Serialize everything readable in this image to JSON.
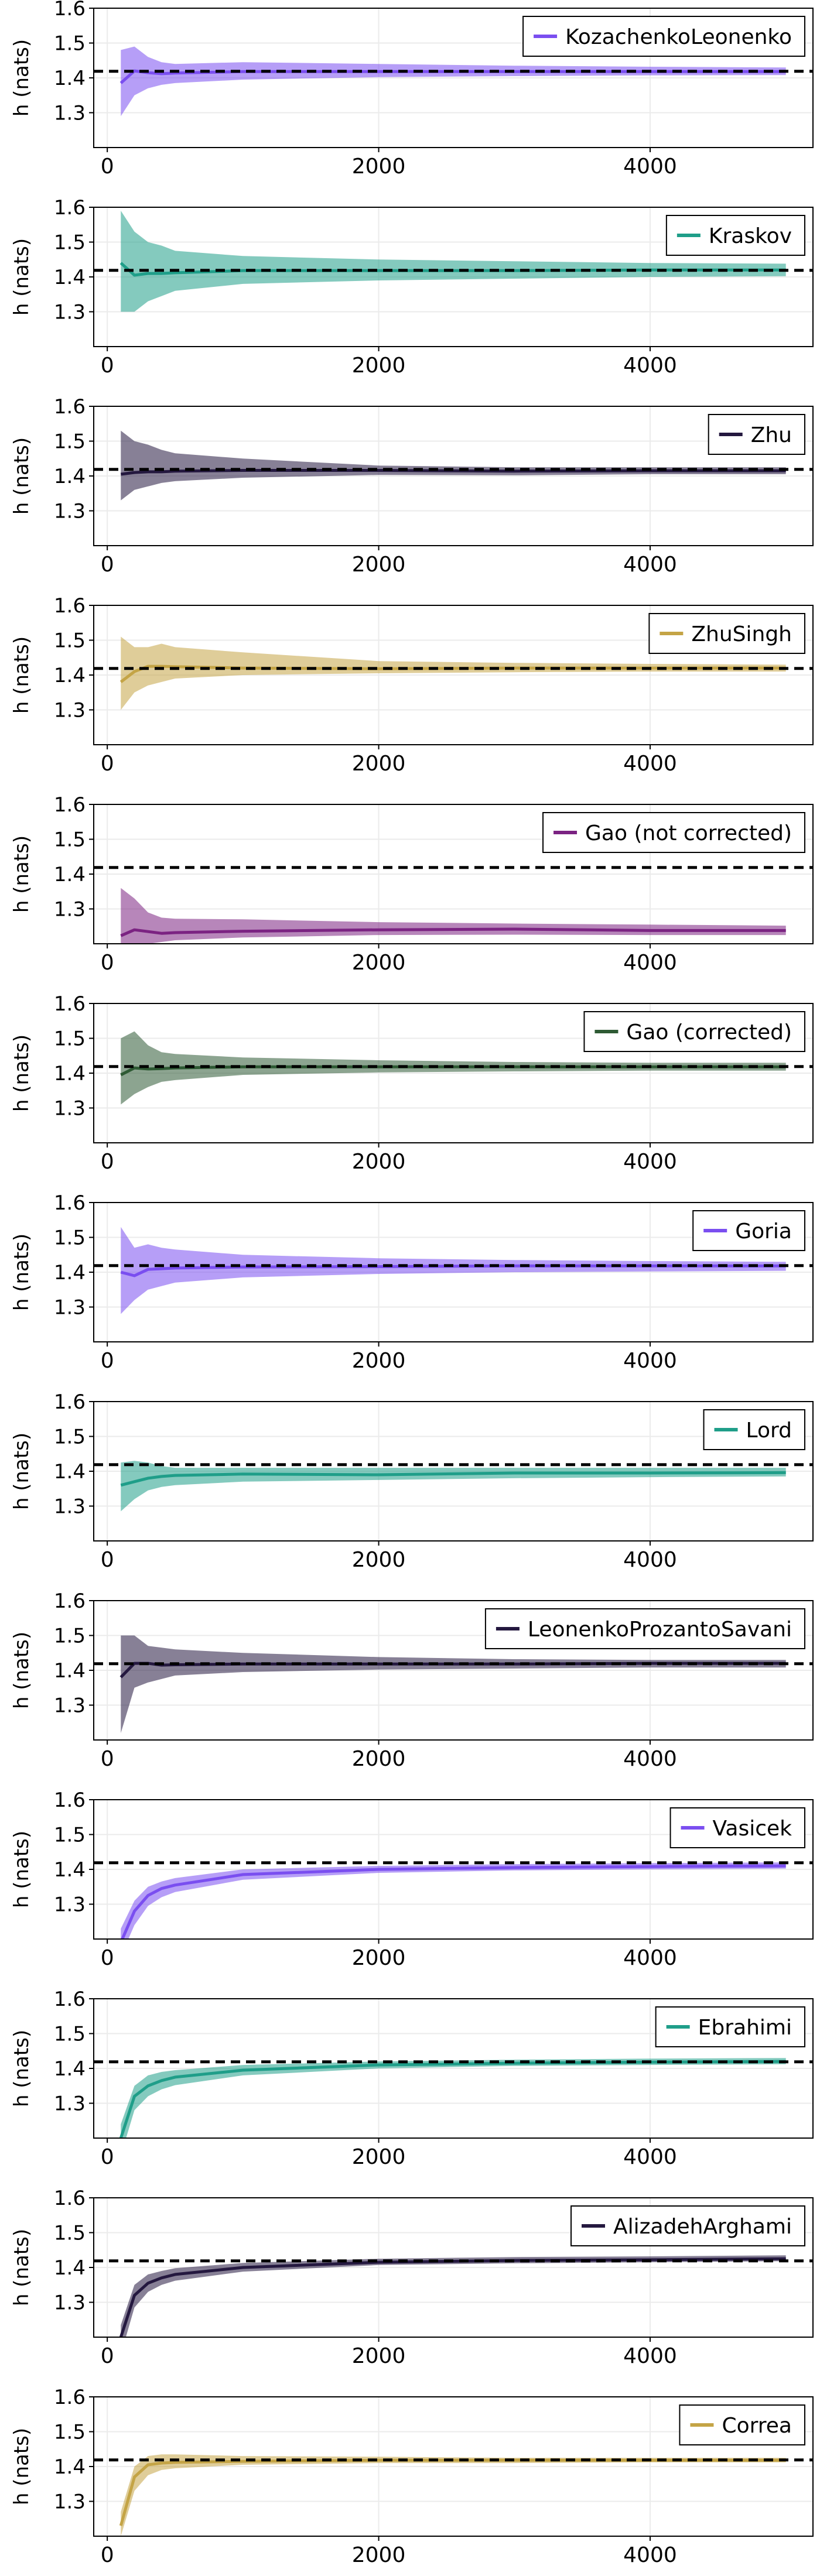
{
  "figure": {
    "ylabel": "h (nats)",
    "reference_value": 1.4189,
    "xlim": [
      -100,
      5200
    ],
    "ylim": [
      1.2,
      1.6
    ],
    "x_ticks": [
      0,
      2000,
      4000
    ],
    "y_ticks": [
      1.3,
      1.4,
      1.5,
      1.6
    ],
    "grid": true,
    "legend_position": "top-right"
  },
  "chart_data": [
    {
      "type": "line",
      "name": "KozachenkoLeonenko",
      "color": "#7a4ef0",
      "x": [
        100,
        200,
        300,
        400,
        500,
        1000,
        2000,
        3000,
        4000,
        5000
      ],
      "y": [
        1.385,
        1.42,
        1.415,
        1.412,
        1.414,
        1.418,
        1.418,
        1.418,
        1.418,
        1.418
      ],
      "lower": [
        1.29,
        1.35,
        1.37,
        1.38,
        1.385,
        1.395,
        1.402,
        1.405,
        1.407,
        1.408
      ],
      "upper": [
        1.48,
        1.49,
        1.46,
        1.445,
        1.44,
        1.445,
        1.44,
        1.435,
        1.432,
        1.43
      ]
    },
    {
      "type": "line",
      "name": "Kraskov",
      "color": "#1f9e89",
      "x": [
        100,
        200,
        300,
        400,
        500,
        1000,
        2000,
        3000,
        4000,
        5000
      ],
      "y": [
        1.44,
        1.405,
        1.41,
        1.41,
        1.412,
        1.418,
        1.418,
        1.418,
        1.42,
        1.42
      ],
      "lower": [
        1.3,
        1.3,
        1.33,
        1.345,
        1.36,
        1.38,
        1.39,
        1.395,
        1.4,
        1.402
      ],
      "upper": [
        1.59,
        1.53,
        1.5,
        1.49,
        1.475,
        1.46,
        1.45,
        1.445,
        1.44,
        1.438
      ]
    },
    {
      "type": "line",
      "name": "Zhu",
      "color": "#24183f",
      "x": [
        100,
        200,
        300,
        400,
        500,
        1000,
        2000,
        3000,
        4000,
        5000
      ],
      "y": [
        1.405,
        1.41,
        1.412,
        1.412,
        1.414,
        1.416,
        1.416,
        1.414,
        1.415,
        1.415
      ],
      "lower": [
        1.33,
        1.36,
        1.37,
        1.38,
        1.385,
        1.395,
        1.403,
        1.402,
        1.405,
        1.405
      ],
      "upper": [
        1.53,
        1.5,
        1.49,
        1.475,
        1.465,
        1.45,
        1.43,
        1.425,
        1.425,
        1.425
      ]
    },
    {
      "type": "line",
      "name": "ZhuSingh",
      "color": "#c4a446",
      "x": [
        100,
        200,
        300,
        400,
        500,
        1000,
        2000,
        3000,
        4000,
        5000
      ],
      "y": [
        1.38,
        1.41,
        1.425,
        1.425,
        1.424,
        1.42,
        1.418,
        1.42,
        1.42,
        1.42
      ],
      "lower": [
        1.3,
        1.35,
        1.37,
        1.38,
        1.39,
        1.4,
        1.405,
        1.408,
        1.41,
        1.41
      ],
      "upper": [
        1.51,
        1.48,
        1.48,
        1.49,
        1.48,
        1.465,
        1.44,
        1.435,
        1.432,
        1.43
      ]
    },
    {
      "type": "line",
      "name": "Gao (not corrected)",
      "color": "#7b2382",
      "x": [
        100,
        200,
        300,
        400,
        500,
        1000,
        2000,
        3000,
        4000,
        5000
      ],
      "y": [
        1.223,
        1.24,
        1.235,
        1.23,
        1.232,
        1.236,
        1.24,
        1.242,
        1.238,
        1.238
      ],
      "lower": [
        1.2,
        1.2,
        1.2,
        1.205,
        1.21,
        1.218,
        1.225,
        1.226,
        1.225,
        1.225
      ],
      "upper": [
        1.36,
        1.33,
        1.29,
        1.275,
        1.272,
        1.27,
        1.262,
        1.258,
        1.255,
        1.252
      ]
    },
    {
      "type": "line",
      "name": "Gao (corrected)",
      "color": "#2e5a34",
      "x": [
        100,
        200,
        300,
        400,
        500,
        1000,
        2000,
        3000,
        4000,
        5000
      ],
      "y": [
        1.395,
        1.415,
        1.412,
        1.413,
        1.415,
        1.418,
        1.418,
        1.418,
        1.418,
        1.418
      ],
      "lower": [
        1.31,
        1.34,
        1.36,
        1.375,
        1.38,
        1.395,
        1.402,
        1.405,
        1.407,
        1.407
      ],
      "upper": [
        1.5,
        1.52,
        1.48,
        1.46,
        1.455,
        1.445,
        1.437,
        1.432,
        1.43,
        1.43
      ]
    },
    {
      "type": "line",
      "name": "Goria",
      "color": "#7a4ef0",
      "x": [
        100,
        200,
        300,
        400,
        500,
        1000,
        2000,
        3000,
        4000,
        5000
      ],
      "y": [
        1.4,
        1.39,
        1.408,
        1.41,
        1.412,
        1.415,
        1.416,
        1.418,
        1.418,
        1.418
      ],
      "lower": [
        1.28,
        1.32,
        1.35,
        1.36,
        1.37,
        1.385,
        1.395,
        1.4,
        1.402,
        1.404
      ],
      "upper": [
        1.53,
        1.47,
        1.48,
        1.47,
        1.465,
        1.45,
        1.44,
        1.435,
        1.432,
        1.43
      ]
    },
    {
      "type": "line",
      "name": "Lord",
      "color": "#1f9e89",
      "x": [
        100,
        200,
        300,
        400,
        500,
        1000,
        2000,
        3000,
        4000,
        5000
      ],
      "y": [
        1.36,
        1.37,
        1.38,
        1.385,
        1.388,
        1.392,
        1.39,
        1.395,
        1.395,
        1.396
      ],
      "lower": [
        1.285,
        1.32,
        1.345,
        1.355,
        1.36,
        1.37,
        1.375,
        1.38,
        1.383,
        1.385
      ],
      "upper": [
        1.425,
        1.43,
        1.425,
        1.415,
        1.41,
        1.41,
        1.41,
        1.41,
        1.41,
        1.41
      ]
    },
    {
      "type": "line",
      "name": "LeonenkoProzantoSavani",
      "color": "#24183f",
      "x": [
        100,
        200,
        300,
        400,
        500,
        1000,
        2000,
        3000,
        4000,
        5000
      ],
      "y": [
        1.38,
        1.42,
        1.42,
        1.415,
        1.416,
        1.418,
        1.418,
        1.418,
        1.42,
        1.42
      ],
      "lower": [
        1.22,
        1.35,
        1.365,
        1.375,
        1.385,
        1.395,
        1.402,
        1.405,
        1.408,
        1.408
      ],
      "upper": [
        1.5,
        1.5,
        1.47,
        1.465,
        1.46,
        1.45,
        1.438,
        1.432,
        1.43,
        1.43
      ]
    },
    {
      "type": "line",
      "name": "Vasicek",
      "color": "#7a4ef0",
      "x": [
        100,
        200,
        300,
        400,
        500,
        1000,
        2000,
        3000,
        4000,
        5000
      ],
      "y": [
        1.19,
        1.28,
        1.325,
        1.345,
        1.355,
        1.385,
        1.4,
        1.405,
        1.408,
        1.41
      ],
      "lower": [
        1.15,
        1.24,
        1.295,
        1.32,
        1.335,
        1.37,
        1.39,
        1.397,
        1.4,
        1.402
      ],
      "upper": [
        1.23,
        1.31,
        1.35,
        1.365,
        1.375,
        1.4,
        1.41,
        1.415,
        1.418,
        1.42
      ]
    },
    {
      "type": "line",
      "name": "Ebrahimi",
      "color": "#1f9e89",
      "x": [
        100,
        200,
        300,
        400,
        500,
        1000,
        2000,
        3000,
        4000,
        5000
      ],
      "y": [
        1.2,
        1.32,
        1.35,
        1.365,
        1.375,
        1.395,
        1.41,
        1.415,
        1.418,
        1.42
      ],
      "lower": [
        1.15,
        1.28,
        1.32,
        1.34,
        1.352,
        1.38,
        1.4,
        1.407,
        1.41,
        1.412
      ],
      "upper": [
        1.24,
        1.35,
        1.38,
        1.39,
        1.395,
        1.41,
        1.42,
        1.425,
        1.428,
        1.43
      ]
    },
    {
      "type": "line",
      "name": "AlizadehArghami",
      "color": "#24183f",
      "x": [
        100,
        200,
        300,
        400,
        500,
        1000,
        2000,
        3000,
        4000,
        5000
      ],
      "y": [
        1.2,
        1.32,
        1.355,
        1.37,
        1.38,
        1.4,
        1.415,
        1.42,
        1.422,
        1.425
      ],
      "lower": [
        1.15,
        1.285,
        1.33,
        1.35,
        1.362,
        1.388,
        1.407,
        1.412,
        1.415,
        1.418
      ],
      "upper": [
        1.235,
        1.35,
        1.38,
        1.39,
        1.398,
        1.413,
        1.425,
        1.43,
        1.432,
        1.435
      ]
    },
    {
      "type": "line",
      "name": "Correa",
      "color": "#c4a446",
      "x": [
        100,
        200,
        300,
        400,
        500,
        1000,
        2000,
        3000,
        4000,
        5000
      ],
      "y": [
        1.23,
        1.37,
        1.405,
        1.41,
        1.412,
        1.415,
        1.418,
        1.418,
        1.418,
        1.418
      ],
      "lower": [
        1.2,
        1.33,
        1.375,
        1.39,
        1.395,
        1.405,
        1.41,
        1.41,
        1.412,
        1.412
      ],
      "upper": [
        1.27,
        1.4,
        1.43,
        1.435,
        1.435,
        1.43,
        1.428,
        1.425,
        1.425,
        1.425
      ]
    }
  ]
}
